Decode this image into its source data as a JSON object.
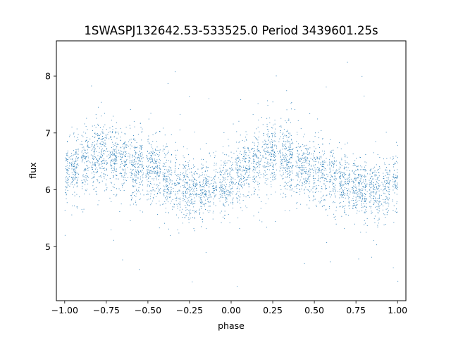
{
  "chart_data": {
    "type": "scatter",
    "title": "1SWASPJ132642.53-533525.0 Period 3439601.25s",
    "xlabel": "phase",
    "ylabel": "flux",
    "xlim": [
      -1.05,
      1.05
    ],
    "ylim": [
      4.05,
      8.62
    ],
    "xticks": [
      -1.0,
      -0.75,
      -0.5,
      -0.25,
      0.0,
      0.25,
      0.5,
      0.75,
      1.0
    ],
    "xtick_labels": [
      "−1.00",
      "−0.75",
      "−0.50",
      "−0.25",
      "0.00",
      "0.25",
      "0.50",
      "0.75",
      "1.00"
    ],
    "yticks": [
      5,
      6,
      7,
      8
    ],
    "ytick_labels": [
      "5",
      "6",
      "7",
      "8"
    ],
    "grid": false,
    "legend": "none",
    "marker_color": "#1f77b4",
    "series": [
      {
        "profile_x": [
          -1.0,
          -0.9,
          -0.8,
          -0.7,
          -0.6,
          -0.5,
          -0.4,
          -0.3,
          -0.2,
          -0.1,
          0.0,
          0.1,
          0.2,
          0.3,
          0.4,
          0.5,
          0.6,
          0.7,
          0.8,
          0.9,
          1.0
        ],
        "profile_median_y": [
          6.25,
          6.45,
          6.65,
          6.55,
          6.45,
          6.4,
          6.2,
          6.1,
          6.0,
          6.05,
          6.15,
          6.4,
          6.65,
          6.6,
          6.4,
          6.35,
          6.2,
          6.1,
          6.0,
          6.0,
          6.2
        ],
        "profile_spread": [
          0.35,
          0.4,
          0.45,
          0.4,
          0.4,
          0.4,
          0.38,
          0.36,
          0.35,
          0.36,
          0.36,
          0.4,
          0.45,
          0.42,
          0.4,
          0.4,
          0.38,
          0.36,
          0.35,
          0.35,
          0.35
        ],
        "y_min": 4.25,
        "y_max": 8.42,
        "visible_gaps_x": [
          -0.97,
          -0.91,
          -0.85,
          -0.74,
          -0.68,
          -0.62,
          -0.52,
          -0.42,
          -0.35,
          -0.3,
          -0.2,
          -0.12,
          -0.08,
          0.02,
          0.12,
          0.18,
          0.28,
          0.38,
          0.48,
          0.58,
          0.64,
          0.72,
          0.82,
          0.9,
          0.96
        ]
      }
    ]
  }
}
